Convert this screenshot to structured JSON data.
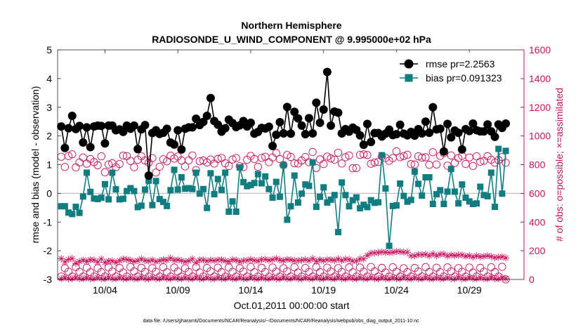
{
  "chart_data": {
    "type": "line",
    "title_line1": "Northern Hemisphere",
    "title_line2": "RADIOSONDE_U_WIND_COMPONENT @ 9.995000e+02 hPa",
    "xlabel": "Oct.01,2011 00:00:00 start",
    "ylabel_left": "rmse and bias (model - observation)",
    "ylabel_right": "# of obs: o=possible; ×=assimilated",
    "footer": "data file: /Users/gharamti/Documents/NCAR/Reanalysis/~/Documents/NCAR/Reanalysis/webpub/obs_diag_output_2011-10.nc",
    "x_ticks": [
      {
        "day": 4,
        "label": "10/04"
      },
      {
        "day": 9,
        "label": "10/09"
      },
      {
        "day": 14,
        "label": "10/14"
      },
      {
        "day": 19,
        "label": "10/19"
      },
      {
        "day": 24,
        "label": "10/24"
      },
      {
        "day": 29,
        "label": "10/29"
      }
    ],
    "xlim": [
      0.75,
      32.75
    ],
    "ylim_left": [
      -3,
      5
    ],
    "y_ticks_left": [
      "-3",
      "-2",
      "-1",
      "0",
      "1",
      "2",
      "3",
      "4",
      "5"
    ],
    "ylim_right": [
      0,
      1600
    ],
    "y_ticks_right": [
      "0",
      "200",
      "400",
      "600",
      "800",
      "1000",
      "1200",
      "1400",
      "1600"
    ],
    "legend_rmse": "rmse pr=2.2563",
    "legend_bias": "bias pr=0.091323",
    "colors": {
      "rmse": "#000000",
      "bias": "#127d80",
      "obs": "#c8125c",
      "zero": "#c0c0c0"
    },
    "time_start": 1,
    "time_step": 0.25,
    "rmse": [
      2.33,
      1.58,
      2.27,
      2.7,
      2.24,
      2.35,
      1.77,
      2.3,
      1.61,
      2.33,
      2.36,
      2.35,
      1.74,
      2.36,
      2.36,
      2.2,
      2.23,
      2.14,
      2.36,
      2.25,
      2.36,
      1.54,
      2.23,
      2.38,
      0.62,
      2.1,
      2.2,
      2.07,
      2.11,
      2.25,
      1.77,
      1.7,
      2.2,
      1.53,
      2.25,
      2.3,
      2.3,
      2.6,
      2.38,
      2.49,
      2.7,
      3.32,
      2.52,
      2.39,
      2.15,
      2.27,
      2.57,
      2.45,
      2.31,
      2.37,
      2.52,
      2.33,
      2.46,
      2.08,
      2.14,
      2.28,
      2.26,
      2.32,
      1.65,
      2.04,
      2.48,
      2.09,
      3.01,
      2.08,
      2.84,
      2.61,
      2.36,
      2.06,
      2.62,
      2.09,
      3.16,
      2.46,
      2.92,
      4.23,
      2.36,
      2.85,
      2.81,
      2.09,
      2.24,
      2.15,
      2.29,
      2.21,
      2.02,
      1.69,
      2.42,
      1.79,
      2.1,
      2.1,
      1.98,
      2.08,
      2.22,
      2.03,
      2.06,
      2.39,
      2.08,
      2.02,
      2.14,
      2.01,
      2.24,
      2.09,
      2.5,
      2.11,
      3.0,
      2.23,
      2.25,
      1.46,
      2.42,
      1.95,
      2.19,
      2.11,
      1.53,
      2.24,
      2.17,
      2.43,
      2.2,
      2.16,
      2.16,
      2.4,
      2.16,
      1.97,
      2.4,
      2.28,
      2.43
    ],
    "bias": [
      -0.45,
      -0.45,
      -0.67,
      -0.72,
      -0.47,
      -0.68,
      -0.11,
      0.72,
      0.05,
      -0.18,
      -0.2,
      -0.15,
      0.32,
      -0.21,
      0.72,
      0.14,
      -0.21,
      -0.19,
      0.08,
      0.18,
      0.08,
      -0.48,
      -0.43,
      0.13,
      0.44,
      -0.41,
      0.43,
      -0.2,
      -0.3,
      -0.44,
      0.11,
      0.82,
      0.13,
      0.56,
      0.16,
      0.18,
      0.15,
      0.72,
      -0.01,
      0.15,
      -0.51,
      0.7,
      -0.03,
      0.5,
      0.12,
      0.72,
      -0.64,
      -0.28,
      -0.64,
      0.9,
      0.39,
      0.25,
      0.29,
      0.36,
      0.67,
      0.35,
      0.59,
      0.15,
      -0.15,
      0.4,
      -0.12,
      0.99,
      -0.92,
      -0.45,
      0.62,
      -0.32,
      -0.01,
      0.31,
      0.26,
      1.08,
      -0.47,
      -0.12,
      0.21,
      -0.32,
      -0.22,
      -0.06,
      -1.35,
      0.38,
      -0.06,
      -0.45,
      -0.24,
      -0.14,
      -0.52,
      -0.4,
      -0.48,
      -0.24,
      -0.33,
      -0.31,
      1.33,
      0.17,
      -1.83,
      -0.44,
      -0.42,
      0.34,
      -0.09,
      -0.29,
      -0.23,
      0.76,
      0.33,
      -0.08,
      0.56,
      0.56,
      -0.37,
      -0.03,
      0.11,
      -0.37,
      0.06,
      0.85,
      0.06,
      -0.35,
      0.31,
      -0.15,
      -0.28,
      -0.37,
      -0.35,
      0.23,
      -0.06,
      -0.1,
      0.72,
      -0.47,
      1.55,
      -0.01,
      1.48
    ],
    "obs_possible": [
      855,
      784,
      860,
      872,
      781,
      816,
      850,
      807,
      839,
      818,
      796,
      858,
      747,
      801,
      810,
      782,
      805,
      863,
      860,
      826,
      782,
      834,
      858,
      829,
      814,
      845,
      745,
      786,
      838,
      823,
      862,
      842,
      857,
      829,
      787,
      830,
      864,
      762,
      823,
      829,
      815,
      836,
      808,
      840,
      847,
      809,
      791,
      836,
      846,
      789,
      783,
      834,
      861,
      839,
      785,
      847,
      855,
      817,
      850,
      881,
      839,
      797,
      867,
      854,
      809,
      808,
      829,
      853,
      817,
      888,
      777,
      837,
      804,
      856,
      843,
      835,
      883,
      808,
      852,
      864,
      775,
      776,
      868,
      872,
      867,
      806,
      815,
      819,
      858,
      847,
      827,
      846,
      893,
      852,
      860,
      869,
      804,
      801,
      858,
      849,
      851,
      799,
      887,
      801,
      861,
      880,
      793,
      864,
      812,
      846,
      861,
      805,
      850,
      791,
      858,
      820,
      827,
      859,
      834,
      814,
      832,
      853,
      813
    ],
    "obs_assimilated": [
      145,
      122,
      140,
      146,
      112,
      125,
      135,
      126,
      137,
      135,
      121,
      142,
      118,
      128,
      129,
      118,
      131,
      142,
      139,
      134,
      125,
      131,
      143,
      132,
      128,
      136,
      124,
      131,
      137,
      134,
      149,
      134,
      137,
      131,
      124,
      129,
      143,
      118,
      136,
      136,
      128,
      135,
      132,
      136,
      137,
      130,
      125,
      138,
      134,
      124,
      131,
      133,
      139,
      133,
      128,
      139,
      140,
      134,
      138,
      146,
      136,
      131,
      140,
      137,
      131,
      132,
      134,
      138,
      131,
      146,
      127,
      137,
      131,
      138,
      137,
      133,
      142,
      132,
      141,
      139,
      128,
      128,
      143,
      143,
      167,
      183,
      185,
      187,
      191,
      189,
      187,
      189,
      195,
      193,
      190,
      190,
      164,
      165,
      173,
      172,
      175,
      165,
      179,
      165,
      175,
      177,
      163,
      171,
      167,
      170,
      171,
      161,
      166,
      156,
      165,
      158,
      161,
      165,
      160,
      152,
      155,
      158,
      150
    ],
    "obs_possible_low": [
      20,
      79,
      54,
      20,
      86,
      53,
      20,
      82,
      50,
      20,
      78,
      51,
      20,
      84,
      55,
      20,
      80,
      49,
      20,
      87,
      56,
      20,
      81,
      52,
      20,
      79,
      54,
      20,
      85,
      50,
      20,
      83,
      55,
      20,
      78,
      52,
      20,
      86,
      49,
      20,
      80,
      56,
      20,
      82,
      51,
      20,
      84,
      53,
      20,
      79,
      55,
      20,
      87,
      50,
      20,
      81,
      52,
      20,
      83,
      54,
      20,
      78,
      56,
      20,
      85,
      49,
      20,
      80,
      53,
      20,
      86,
      51,
      20,
      82,
      55,
      20,
      79,
      52,
      20,
      84,
      50,
      20,
      83,
      54,
      20,
      87,
      56,
      20,
      81,
      49,
      20,
      85,
      53,
      20,
      78,
      51,
      20,
      80,
      55,
      20,
      86,
      52,
      20,
      82,
      50,
      20,
      84,
      56,
      20,
      79,
      53,
      20,
      83,
      49,
      20,
      81,
      54,
      20,
      85,
      51,
      20,
      88,
      0
    ],
    "obs_assimilated_low": [
      5,
      14,
      5,
      5,
      15,
      5,
      5,
      13,
      5,
      5,
      14,
      5,
      5,
      16,
      5,
      5,
      14,
      5,
      5,
      13,
      5,
      5,
      15,
      5,
      5,
      14,
      5,
      5,
      16,
      5,
      5,
      13,
      5,
      5,
      14,
      5,
      5,
      15,
      5,
      5,
      14,
      5,
      5,
      13,
      5,
      5,
      16,
      5,
      5,
      14,
      5,
      5,
      15,
      5,
      5,
      13,
      5,
      5,
      14,
      5,
      5,
      16,
      5,
      5,
      14,
      5,
      5,
      13,
      5,
      5,
      15,
      5,
      5,
      14,
      5,
      5,
      16,
      5,
      5,
      13,
      5,
      5,
      14,
      5,
      5,
      15,
      5,
      5,
      14,
      5,
      5,
      13,
      5,
      5,
      16,
      5,
      5,
      14,
      5,
      5,
      15,
      5,
      5,
      13,
      5,
      5,
      14,
      5,
      5,
      16,
      5,
      5,
      14,
      5,
      5,
      13,
      5,
      5,
      15,
      5,
      5,
      14,
      5
    ]
  }
}
